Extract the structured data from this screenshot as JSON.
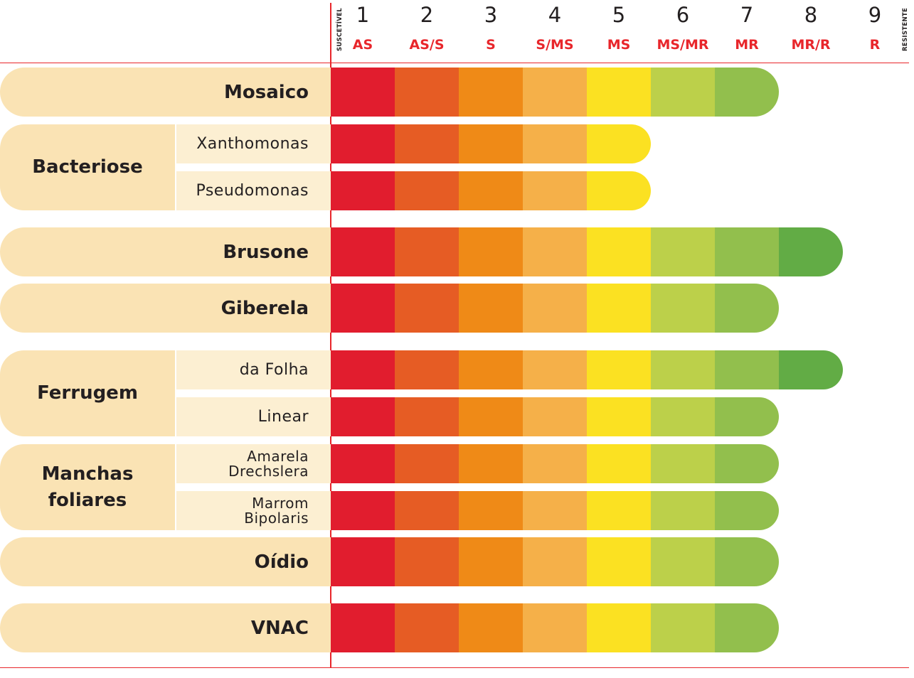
{
  "scale": {
    "left_label": "SUSCETÍVEL",
    "right_label": "RESISTENTE",
    "levels": [
      {
        "num": "1",
        "code": "AS",
        "color": "#e11d2e"
      },
      {
        "num": "2",
        "code": "AS/S",
        "color": "#e65c24"
      },
      {
        "num": "3",
        "code": "S",
        "color": "#ef8a17"
      },
      {
        "num": "4",
        "code": "S/MS",
        "color": "#f5b049"
      },
      {
        "num": "5",
        "code": "MS",
        "color": "#fbe122"
      },
      {
        "num": "6",
        "code": "MS/MR",
        "color": "#bcd04a"
      },
      {
        "num": "7",
        "code": "MR",
        "color": "#92bf4d"
      },
      {
        "num": "8",
        "code": "MR/R",
        "color": "#62ac45"
      },
      {
        "num": "9",
        "code": "R",
        "color": "#3f9a3e"
      }
    ]
  },
  "chart_data": {
    "type": "bar",
    "x": [
      1,
      2,
      3,
      4,
      5,
      6,
      7,
      8,
      9
    ],
    "groups": [
      {
        "label": "Mosaico",
        "rows": [
          {
            "label": "",
            "value": 7
          }
        ]
      },
      {
        "label": "Bacteriose",
        "rows": [
          {
            "label": "Xanthomonas",
            "value": 5
          },
          {
            "label": "Pseudomonas",
            "value": 5
          }
        ]
      },
      {
        "label": "Brusone",
        "rows": [
          {
            "label": "",
            "value": 8
          }
        ]
      },
      {
        "label": "Giberela",
        "rows": [
          {
            "label": "",
            "value": 7
          }
        ]
      },
      {
        "label": "Ferrugem",
        "rows": [
          {
            "label": "da Folha",
            "value": 8
          },
          {
            "label": "Linear",
            "value": 7
          }
        ]
      },
      {
        "label": "Manchas\nfoliares",
        "rows": [
          {
            "label": "Amarela\nDrechslera",
            "value": 7
          },
          {
            "label": "Marrom\nBipolaris",
            "value": 7
          }
        ]
      },
      {
        "label": "Oídio",
        "rows": [
          {
            "label": "",
            "value": 7
          }
        ]
      },
      {
        "label": "VNAC",
        "rows": [
          {
            "label": "",
            "value": 7
          }
        ]
      }
    ]
  }
}
